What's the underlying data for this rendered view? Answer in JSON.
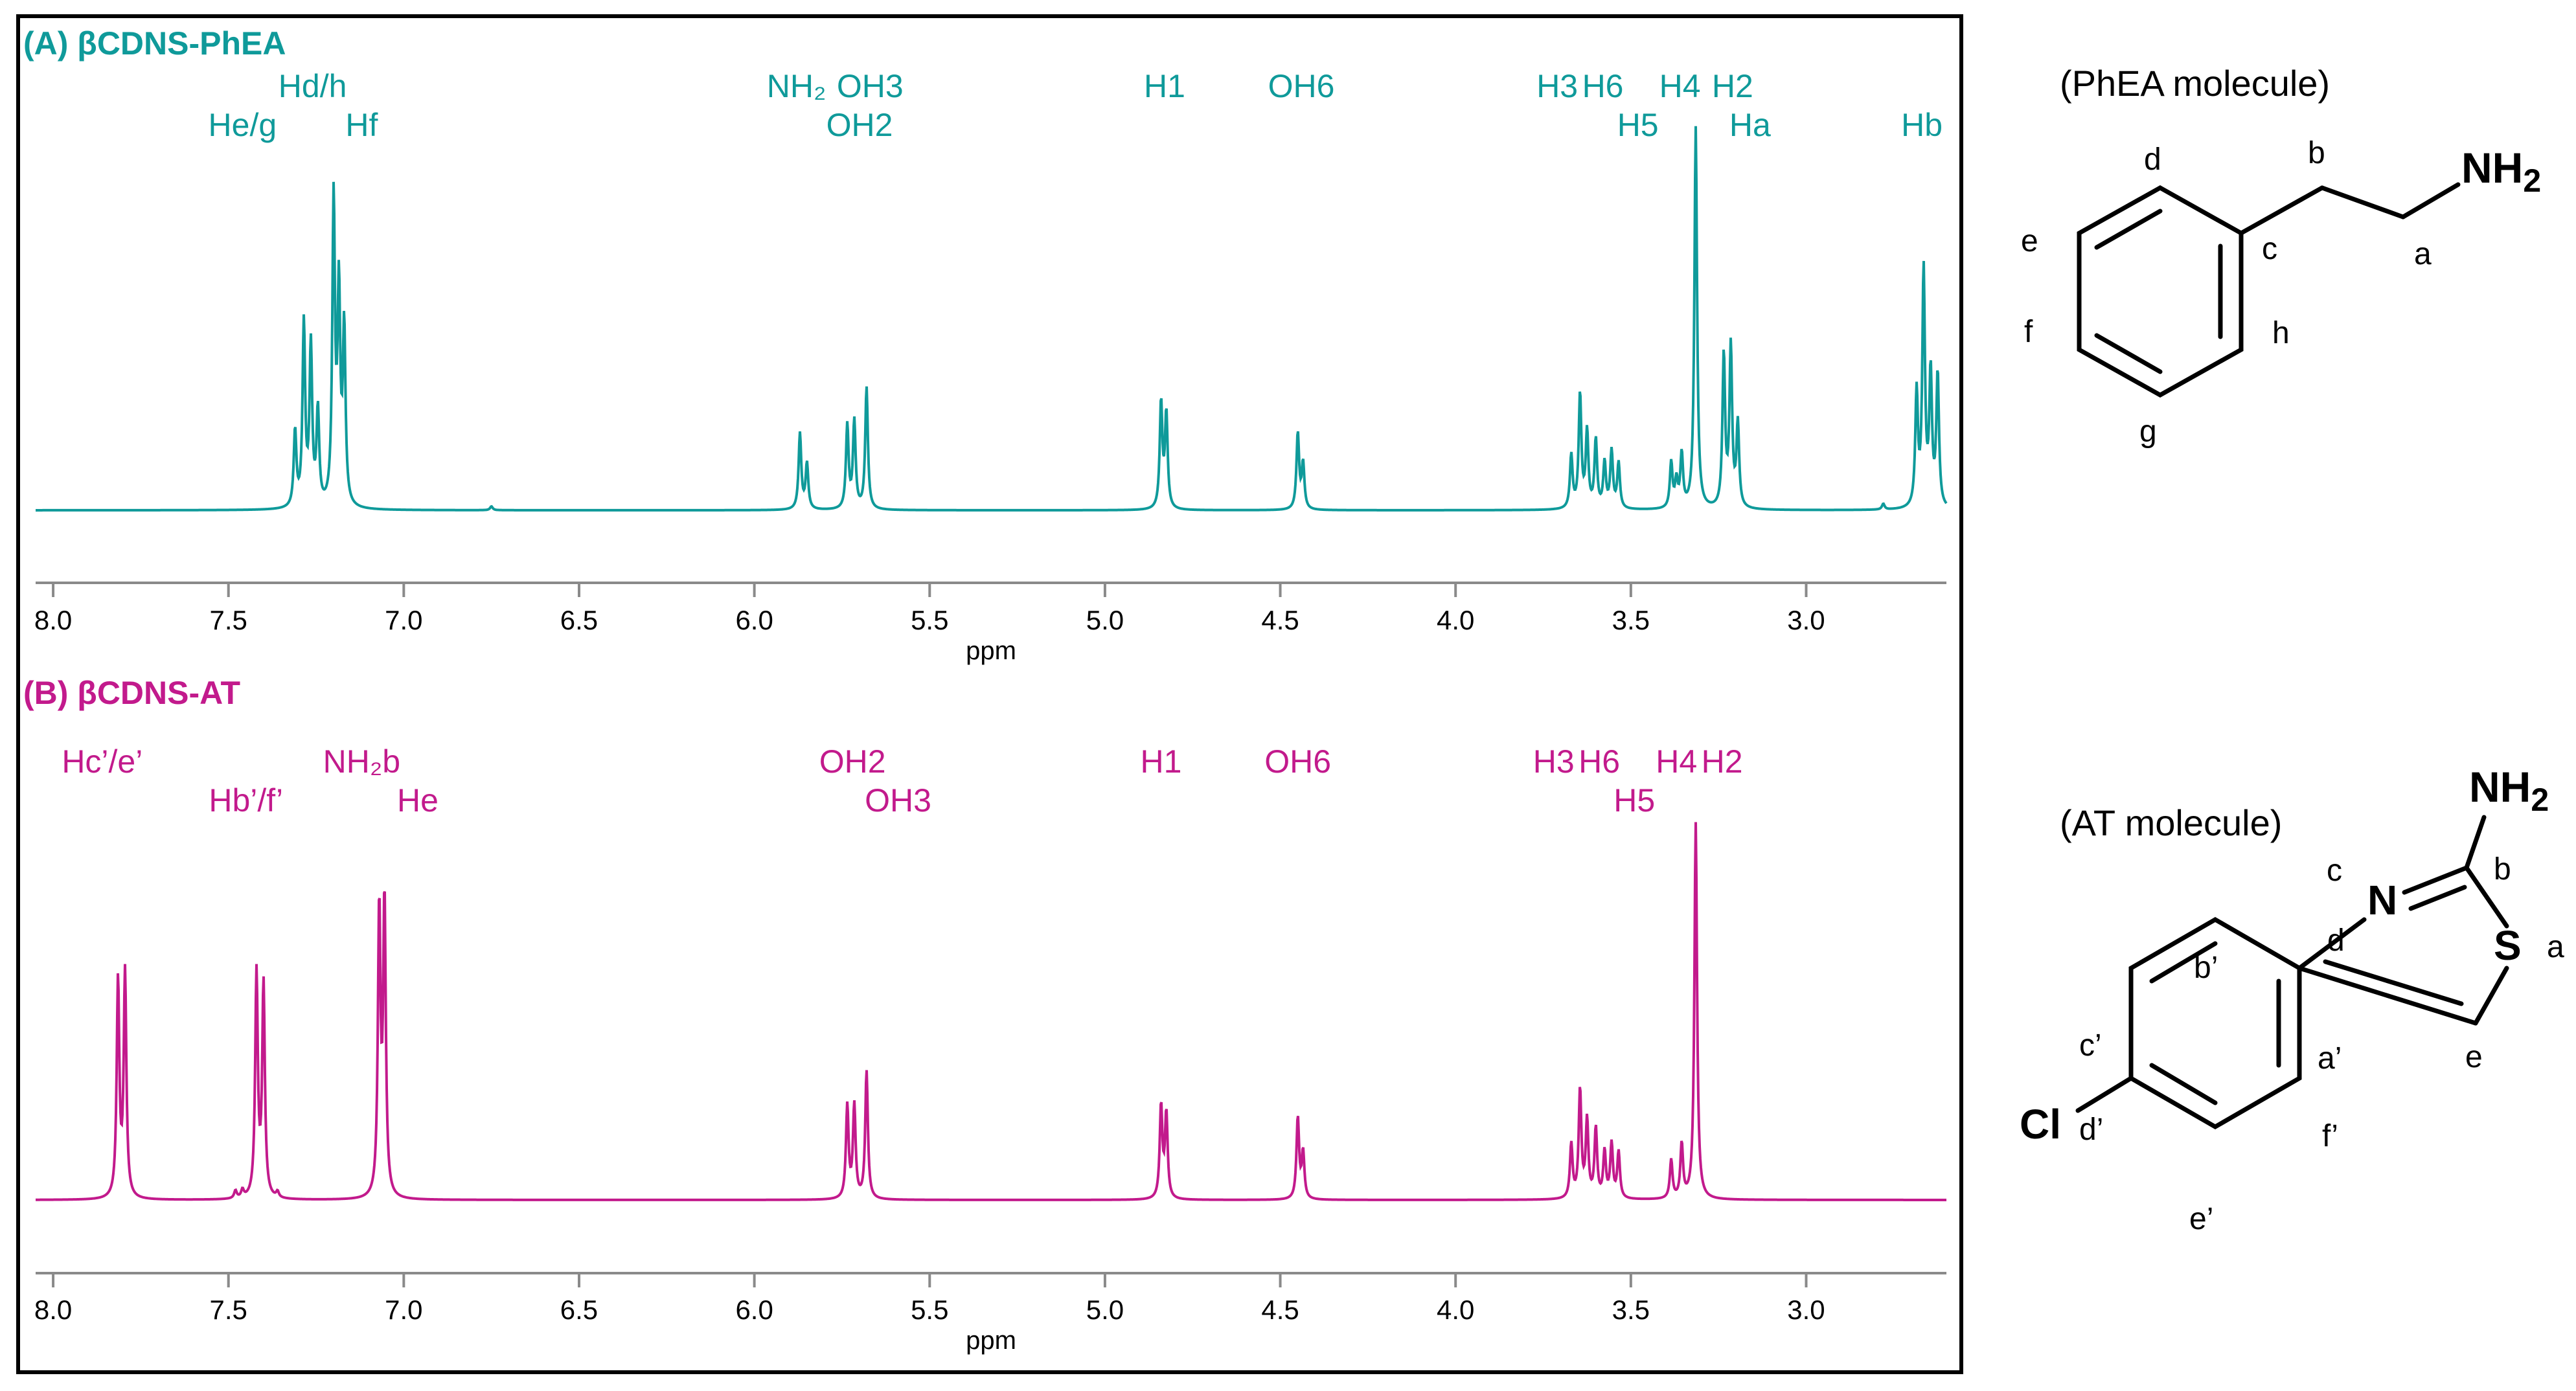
{
  "chart_data": [
    {
      "type": "line",
      "panel_label": "(A) βCDNS-PhEA",
      "xlabel": "ppm",
      "xlim": [
        8.05,
        2.6
      ],
      "x_reversed": true,
      "ticks": [
        "8.0",
        "7.5",
        "7.0",
        "6.5",
        "6.0",
        "5.5",
        "5.0",
        "4.5",
        "4.0",
        "3.5",
        "3.0"
      ],
      "ylabel": "",
      "ylim": [
        0,
        1.05
      ],
      "grid": false,
      "color": "#0f9a9a",
      "annotations": [
        {
          "text": "He/g",
          "ppm": 7.46
        },
        {
          "text": "Hd/h",
          "ppm": 7.26
        },
        {
          "text": "Hf",
          "ppm": 7.12
        },
        {
          "text": "NH₂",
          "ppm": 5.88
        },
        {
          "text": "OH3",
          "ppm": 5.67
        },
        {
          "text": "OH2",
          "ppm": 5.7
        },
        {
          "text": "H1",
          "ppm": 4.83
        },
        {
          "text": "OH6",
          "ppm": 4.44
        },
        {
          "text": "H3",
          "ppm": 3.71
        },
        {
          "text": "H6",
          "ppm": 3.58
        },
        {
          "text": "H5",
          "ppm": 3.48
        },
        {
          "text": "H4",
          "ppm": 3.36
        },
        {
          "text": "H2",
          "ppm": 3.21
        },
        {
          "text": "Ha",
          "ppm": 3.16
        },
        {
          "text": "Hb",
          "ppm": 2.67
        }
      ],
      "peaks": [
        {
          "ppm": 7.31,
          "height": 0.2
        },
        {
          "ppm": 7.285,
          "height": 0.48
        },
        {
          "ppm": 7.265,
          "height": 0.42
        },
        {
          "ppm": 7.245,
          "height": 0.25
        },
        {
          "ppm": 7.2,
          "height": 0.8
        },
        {
          "ppm": 7.185,
          "height": 0.55
        },
        {
          "ppm": 7.17,
          "height": 0.46
        },
        {
          "ppm": 6.75,
          "height": 0.01
        },
        {
          "ppm": 5.87,
          "height": 0.2
        },
        {
          "ppm": 5.85,
          "height": 0.12
        },
        {
          "ppm": 5.735,
          "height": 0.22
        },
        {
          "ppm": 5.715,
          "height": 0.23
        },
        {
          "ppm": 5.68,
          "height": 0.32
        },
        {
          "ppm": 4.84,
          "height": 0.28
        },
        {
          "ppm": 4.825,
          "height": 0.25
        },
        {
          "ppm": 4.45,
          "height": 0.2
        },
        {
          "ppm": 4.435,
          "height": 0.12
        },
        {
          "ppm": 3.67,
          "height": 0.14
        },
        {
          "ppm": 3.645,
          "height": 0.3
        },
        {
          "ppm": 3.625,
          "height": 0.2
        },
        {
          "ppm": 3.6,
          "height": 0.18
        },
        {
          "ppm": 3.575,
          "height": 0.12
        },
        {
          "ppm": 3.555,
          "height": 0.15
        },
        {
          "ppm": 3.535,
          "height": 0.12
        },
        {
          "ppm": 3.385,
          "height": 0.12
        },
        {
          "ppm": 3.37,
          "height": 0.07
        },
        {
          "ppm": 3.355,
          "height": 0.14
        },
        {
          "ppm": 3.315,
          "height": 1.0
        },
        {
          "ppm": 3.235,
          "height": 0.4
        },
        {
          "ppm": 3.215,
          "height": 0.42
        },
        {
          "ppm": 3.195,
          "height": 0.22
        },
        {
          "ppm": 2.685,
          "height": 0.3
        },
        {
          "ppm": 2.665,
          "height": 0.62
        },
        {
          "ppm": 2.645,
          "height": 0.35
        },
        {
          "ppm": 2.625,
          "height": 0.35
        },
        {
          "ppm": 2.78,
          "height": 0.015
        }
      ]
    },
    {
      "type": "line",
      "panel_label": "(B) βCDNS-AT",
      "xlabel": "ppm",
      "xlim": [
        8.05,
        2.6
      ],
      "x_reversed": true,
      "ticks": [
        "8.0",
        "7.5",
        "7.0",
        "6.5",
        "6.0",
        "5.5",
        "5.0",
        "4.5",
        "4.0",
        "3.5",
        "3.0"
      ],
      "ylabel": "",
      "ylim": [
        0,
        1.05
      ],
      "grid": false,
      "color": "#c21a8c",
      "annotations": [
        {
          "text": "Hc’/e’",
          "ppm": 7.86
        },
        {
          "text": "Hb’/f’",
          "ppm": 7.45
        },
        {
          "text": "NH₂b",
          "ppm": 7.12
        },
        {
          "text": "He",
          "ppm": 6.96
        },
        {
          "text": "OH2",
          "ppm": 5.72
        },
        {
          "text": "OH3",
          "ppm": 5.59
        },
        {
          "text": "H1",
          "ppm": 4.84
        },
        {
          "text": "OH6",
          "ppm": 4.45
        },
        {
          "text": "H3",
          "ppm": 3.72
        },
        {
          "text": "H6",
          "ppm": 3.59
        },
        {
          "text": "H5",
          "ppm": 3.49
        },
        {
          "text": "H4",
          "ppm": 3.37
        },
        {
          "text": "H2",
          "ppm": 3.24
        }
      ],
      "peaks": [
        {
          "ppm": 7.815,
          "height": 0.56
        },
        {
          "ppm": 7.795,
          "height": 0.58
        },
        {
          "ppm": 7.48,
          "height": 0.02
        },
        {
          "ppm": 7.46,
          "height": 0.02
        },
        {
          "ppm": 7.42,
          "height": 0.58
        },
        {
          "ppm": 7.4,
          "height": 0.55
        },
        {
          "ppm": 7.36,
          "height": 0.015
        },
        {
          "ppm": 7.07,
          "height": 0.74
        },
        {
          "ppm": 7.055,
          "height": 0.76
        },
        {
          "ppm": 5.735,
          "height": 0.24
        },
        {
          "ppm": 5.715,
          "height": 0.24
        },
        {
          "ppm": 5.68,
          "height": 0.33
        },
        {
          "ppm": 4.84,
          "height": 0.24
        },
        {
          "ppm": 4.825,
          "height": 0.22
        },
        {
          "ppm": 4.45,
          "height": 0.21
        },
        {
          "ppm": 4.435,
          "height": 0.12
        },
        {
          "ppm": 3.67,
          "height": 0.14
        },
        {
          "ppm": 3.645,
          "height": 0.28
        },
        {
          "ppm": 3.625,
          "height": 0.2
        },
        {
          "ppm": 3.6,
          "height": 0.18
        },
        {
          "ppm": 3.575,
          "height": 0.12
        },
        {
          "ppm": 3.555,
          "height": 0.14
        },
        {
          "ppm": 3.535,
          "height": 0.12
        },
        {
          "ppm": 3.385,
          "height": 0.1
        },
        {
          "ppm": 3.355,
          "height": 0.14
        },
        {
          "ppm": 3.315,
          "height": 0.97
        }
      ]
    }
  ],
  "molecules": {
    "phea": {
      "title": "(PhEA molecule)",
      "nh2_main": "NH",
      "nh2_sub": "2",
      "labels": {
        "a": "a",
        "b": "b",
        "c": "c",
        "d": "d",
        "e": "e",
        "f": "f",
        "g": "g",
        "h": "h"
      }
    },
    "at": {
      "title": "(AT molecule)",
      "nh2_main": "NH",
      "nh2_sub": "2",
      "N": "N",
      "S": "S",
      "Cl": "Cl",
      "labels": {
        "a": "a",
        "b": "b",
        "c": "c",
        "d": "d",
        "e": "e",
        "a_p": "a’",
        "b_p": "b’",
        "c_p": "c’",
        "d_p": "d’",
        "e_p": "e’",
        "f_p": "f’"
      }
    }
  }
}
